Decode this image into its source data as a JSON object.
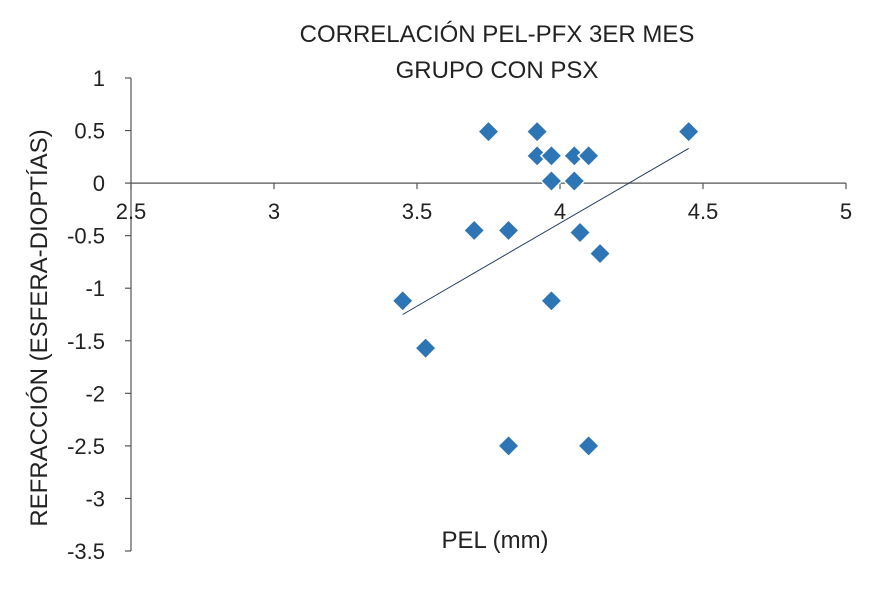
{
  "chart_data": {
    "type": "scatter",
    "title": "CORRELACIÓN PEL-PFX 3ER MES",
    "subtitle": "GRUPO CON PSX",
    "xlabel": "PEL (mm)",
    "ylabel": "REFRACCIÓN (ESFERA-DIOPTÍAS)",
    "xlim": [
      2.5,
      5
    ],
    "ylim": [
      -3.5,
      1
    ],
    "xticks": [
      "2.5",
      "3",
      "3.5",
      "4",
      "4.5",
      "5"
    ],
    "yticks": [
      "1",
      "0.5",
      "0",
      "-0.5",
      "-1",
      "-1.5",
      "-2",
      "-2.5",
      "-3",
      "-3.5"
    ],
    "grid": false,
    "marker_color": "#2E75B6",
    "trendline": {
      "x": [
        3.45,
        4.45
      ],
      "y": [
        -1.25,
        0.33
      ]
    },
    "points": [
      {
        "x": 3.45,
        "y": -1.12
      },
      {
        "x": 3.53,
        "y": -1.57
      },
      {
        "x": 3.7,
        "y": -0.45
      },
      {
        "x": 3.75,
        "y": 0.49
      },
      {
        "x": 3.82,
        "y": -0.45
      },
      {
        "x": 3.82,
        "y": -2.5
      },
      {
        "x": 3.92,
        "y": 0.49
      },
      {
        "x": 3.92,
        "y": 0.26
      },
      {
        "x": 3.97,
        "y": 0.26
      },
      {
        "x": 3.97,
        "y": 0.02
      },
      {
        "x": 3.97,
        "y": -1.12
      },
      {
        "x": 4.05,
        "y": 0.26
      },
      {
        "x": 4.05,
        "y": 0.02
      },
      {
        "x": 4.07,
        "y": -0.47
      },
      {
        "x": 4.1,
        "y": 0.26
      },
      {
        "x": 4.1,
        "y": -2.5
      },
      {
        "x": 4.14,
        "y": -0.67
      },
      {
        "x": 4.45,
        "y": 0.49
      }
    ]
  }
}
